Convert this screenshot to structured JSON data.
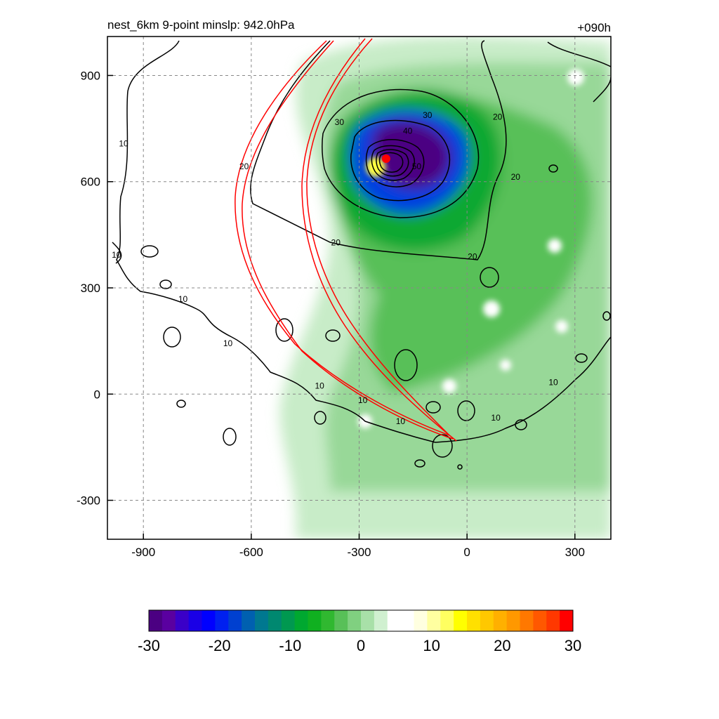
{
  "title_left": "nest_6km  9-point minslp: 942.0hPa",
  "title_right": "+090h",
  "chart_data": {
    "type": "heatmap",
    "title": "nest_6km  9-point minslp: 942.0hPa",
    "forecast_hour_label": "+090h",
    "xlim": [
      -1000,
      400
    ],
    "ylim": [
      -410,
      1010
    ],
    "x_ticks": [
      -900,
      -600,
      -300,
      0,
      300
    ],
    "y_ticks": [
      -300,
      0,
      300,
      600,
      900
    ],
    "x_tick_labels": [
      "-900",
      "-600",
      "-300",
      "0",
      "300"
    ],
    "y_tick_labels": [
      "-300",
      "0",
      "300",
      "600",
      "900"
    ],
    "grid": true,
    "colorbar": {
      "min": -30,
      "max": 30,
      "ticks": [
        -30,
        -20,
        -10,
        0,
        10,
        20,
        30
      ],
      "tick_labels": [
        "-30",
        "-20",
        "-10",
        "0",
        "10",
        "20",
        "30"
      ],
      "colors": [
        "#4b0082",
        "#5a00a0",
        "#3a00c8",
        "#1a00e6",
        "#0000ff",
        "#0020f0",
        "#0040d0",
        "#0060b0",
        "#007890",
        "#008870",
        "#009850",
        "#00a830",
        "#10b020",
        "#30b830",
        "#58c058",
        "#80d080",
        "#a8e0a8",
        "#d0f0d0",
        "#ffffff",
        "#ffffff",
        "#ffffe0",
        "#ffffa0",
        "#ffff60",
        "#ffff00",
        "#ffe000",
        "#ffc800",
        "#ffb000",
        "#ff9800",
        "#ff7800",
        "#ff5800",
        "#ff3800",
        "#ff0000"
      ]
    },
    "contours": {
      "color": "#000000",
      "labels": [
        {
          "text": "10",
          "x": -955,
          "y": 700
        },
        {
          "text": "10",
          "x": -975,
          "y": 385
        },
        {
          "text": "10",
          "x": -790,
          "y": 260
        },
        {
          "text": "10",
          "x": -665,
          "y": 135
        },
        {
          "text": "10",
          "x": -410,
          "y": 15
        },
        {
          "text": "10",
          "x": -290,
          "y": -25
        },
        {
          "text": "10",
          "x": -185,
          "y": -85
        },
        {
          "text": "10",
          "x": 80,
          "y": -75
        },
        {
          "text": "10",
          "x": 240,
          "y": 25
        },
        {
          "text": "20",
          "x": -620,
          "y": 635
        },
        {
          "text": "20",
          "x": -365,
          "y": 420
        },
        {
          "text": "20",
          "x": 15,
          "y": 380
        },
        {
          "text": "20",
          "x": 85,
          "y": 775
        },
        {
          "text": "20",
          "x": 135,
          "y": 605
        },
        {
          "text": "30",
          "x": -355,
          "y": 760
        },
        {
          "text": "30",
          "x": -110,
          "y": 780
        },
        {
          "text": "40",
          "x": -165,
          "y": 735
        },
        {
          "text": "50",
          "x": -140,
          "y": 635
        }
      ]
    },
    "storm_center": {
      "x": -225,
      "y": 665,
      "color": "#ff0000"
    },
    "track_cone_color": "#ff0000"
  }
}
